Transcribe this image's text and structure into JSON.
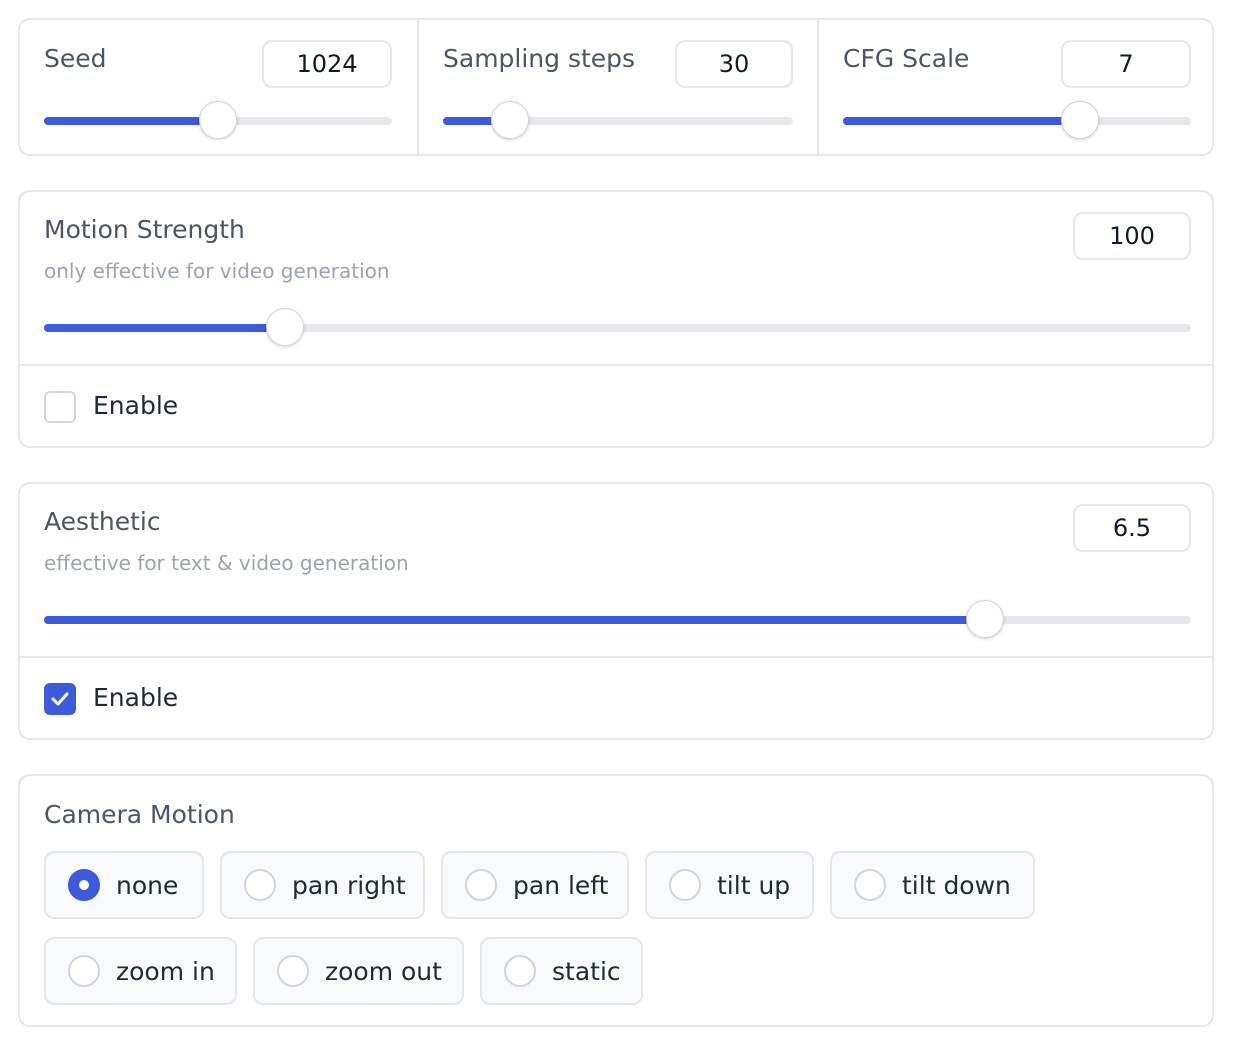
{
  "colors": {
    "accent": "#3b5bdb",
    "border": "#e5e7eb",
    "track": "#e5e7eb",
    "muted": "#9ca3af"
  },
  "top_row": {
    "seed": {
      "label": "Seed",
      "value": "1024",
      "slider_fraction": 0.5
    },
    "sampling_steps": {
      "label": "Sampling steps",
      "value": "30",
      "slider_fraction": 0.19
    },
    "cfg_scale": {
      "label": "CFG Scale",
      "value": "7",
      "slider_fraction": 0.68
    }
  },
  "motion_strength": {
    "label": "Motion Strength",
    "info": "only effective for video generation",
    "value": "100",
    "slider_fraction": 0.21,
    "enable": {
      "label": "Enable",
      "checked": false
    }
  },
  "aesthetic": {
    "label": "Aesthetic",
    "info": "effective for text & video generation",
    "value": "6.5",
    "slider_fraction": 0.82,
    "enable": {
      "label": "Enable",
      "checked": true
    }
  },
  "camera_motion": {
    "label": "Camera Motion",
    "selected": "none",
    "options": [
      "none",
      "pan right",
      "pan left",
      "tilt up",
      "tilt down",
      "zoom in",
      "zoom out",
      "static"
    ]
  }
}
